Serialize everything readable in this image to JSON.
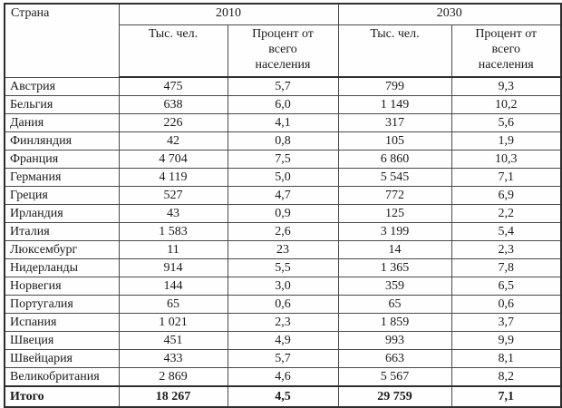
{
  "table": {
    "country_header": "Страна",
    "year_groups": [
      {
        "year": "2010",
        "sub_headers": [
          "Тыс. чел.",
          "Процент от всего населения"
        ]
      },
      {
        "year": "2030",
        "sub_headers": [
          "Тыс. чел.",
          "Процент от всего населения"
        ]
      }
    ],
    "rows": [
      {
        "cells": [
          "Австрия",
          "475",
          "5,7",
          "799",
          "9,3"
        ]
      },
      {
        "cells": [
          "Бельгия",
          "638",
          "6,0",
          "1 149",
          "10,2"
        ]
      },
      {
        "cells": [
          "Дания",
          "226",
          "4,1",
          "317",
          "5,6"
        ]
      },
      {
        "cells": [
          "Финляндия",
          "42",
          "0,8",
          "105",
          "1,9"
        ]
      },
      {
        "cells": [
          "Франция",
          "4 704",
          "7,5",
          "6 860",
          "10,3"
        ]
      },
      {
        "cells": [
          "Германия",
          "4 119",
          "5,0",
          "5 545",
          "7,1"
        ]
      },
      {
        "cells": [
          "Греция",
          "527",
          "4,7",
          "772",
          "6,9"
        ]
      },
      {
        "cells": [
          "Ирландия",
          "43",
          "0,9",
          "125",
          "2,2"
        ]
      },
      {
        "cells": [
          "Италия",
          "1 583",
          "2,6",
          "3 199",
          "5,4"
        ]
      },
      {
        "cells": [
          "Люксембург",
          "11",
          "23",
          "14",
          "2,3"
        ]
      },
      {
        "cells": [
          "Нидерланды",
          "914",
          "5,5",
          "1 365",
          "7,8"
        ]
      },
      {
        "cells": [
          "Норвегия",
          "144",
          "3,0",
          "359",
          "6,5"
        ]
      },
      {
        "cells": [
          "Португалия",
          "65",
          "0,6",
          "65",
          "0,6"
        ]
      },
      {
        "cells": [
          "Испания",
          "1 021",
          "2,3",
          "1 859",
          "3,7"
        ]
      },
      {
        "cells": [
          "Швеция",
          "451",
          "4,9",
          "993",
          "9,9"
        ]
      },
      {
        "cells": [
          "Швейцария",
          "433",
          "5,7",
          "663",
          "8,1"
        ]
      },
      {
        "cells": [
          "Великобритания",
          "2 869",
          "4,6",
          "5 567",
          "8,2"
        ]
      }
    ],
    "total_row": {
      "cells": [
        "Итого",
        "18 267",
        "4,5",
        "29 759",
        "7,1"
      ]
    }
  },
  "colors": {
    "border_outer": "#2e2e2e",
    "border_inner": "#4a4a4a",
    "background": "#fdfdfd",
    "text": "#1b1b1b"
  }
}
